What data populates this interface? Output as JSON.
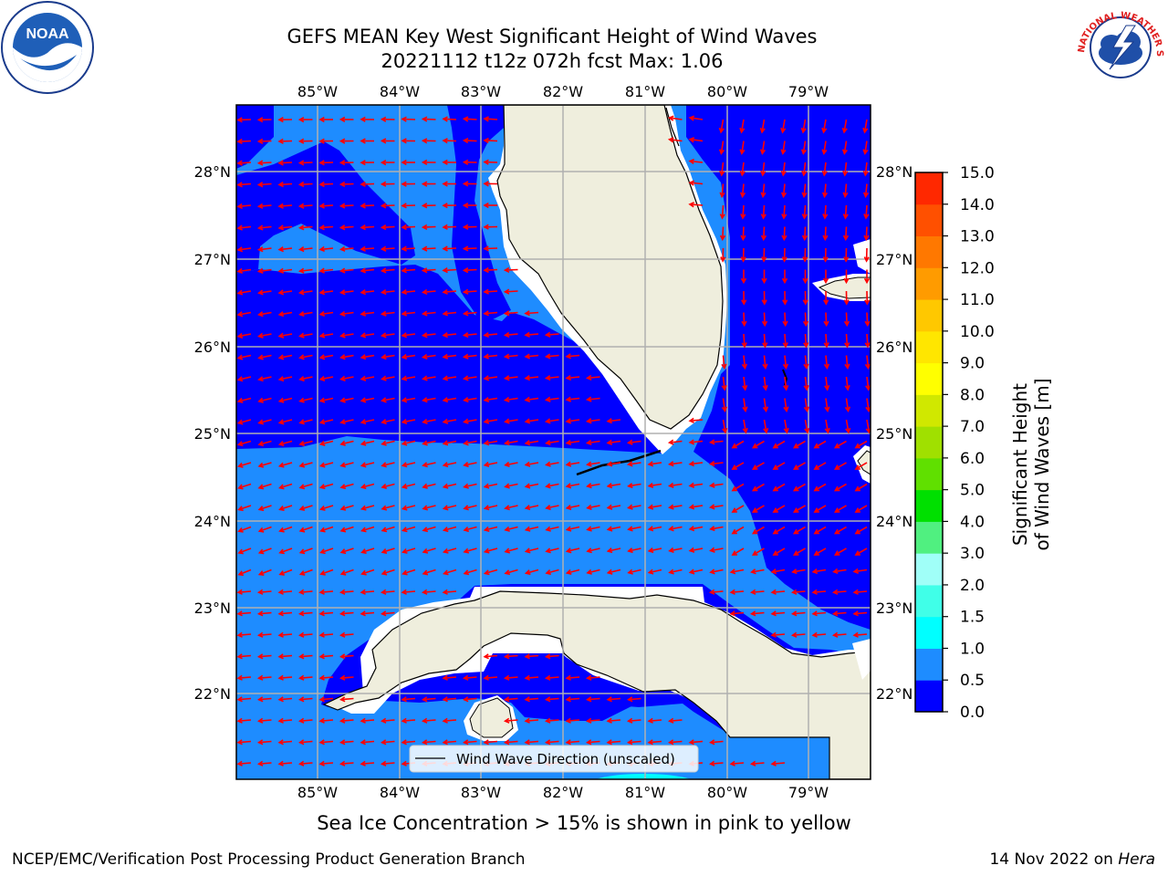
{
  "title": {
    "line1": "GEFS MEAN Key West Significant Height of Wind Waves",
    "line2": "20221112 t12z 072h fcst   Max: 1.06"
  },
  "logos": {
    "left": {
      "icon": "noaa-logo",
      "text": "NOAA"
    },
    "right": {
      "icon": "national-weather-service-logo",
      "text": "NATIONAL WEATHER SERVICE"
    }
  },
  "map": {
    "lon_labels": [
      "85°W",
      "84°W",
      "83°W",
      "82°W",
      "81°W",
      "80°W",
      "79°W"
    ],
    "lat_labels": [
      "28°N",
      "27°N",
      "26°N",
      "25°N",
      "24°N",
      "23°N",
      "22°N"
    ],
    "legend": "Wind Wave Direction (unscaled)",
    "colors": {
      "ocean_low": "#0000ff",
      "ocean_mid": "#1e8cff",
      "land": "#efeedd",
      "arrows": "#ff0000",
      "grid": "#b0b0b0"
    }
  },
  "colorbar": {
    "title": "Significant Height of Wind Waves [m]",
    "tick_labels": [
      "0.0",
      "0.5",
      "1.0",
      "1.5",
      "2.0",
      "3.0",
      "4.0",
      "5.0",
      "6.0",
      "7.0",
      "8.0",
      "9.0",
      "10.0",
      "11.0",
      "12.0",
      "13.0",
      "14.0",
      "15.0"
    ],
    "colors": [
      "#0000ff",
      "#1e8cff",
      "#00ffff",
      "#40ffe8",
      "#a0fff8",
      "#50f080",
      "#00e000",
      "#60e000",
      "#a0e000",
      "#d0e800",
      "#ffff00",
      "#ffe600",
      "#ffc800",
      "#ff9b00",
      "#ff7800",
      "#ff5000",
      "#ff2800",
      "#ff0000"
    ]
  },
  "note": "Sea Ice Concentration > 15% is shown in pink to yellow",
  "footer": {
    "left": "NCEP/EMC/Verification Post Processing Product Generation Branch",
    "date": "14 Nov 2022 on ",
    "host": "Hera"
  }
}
